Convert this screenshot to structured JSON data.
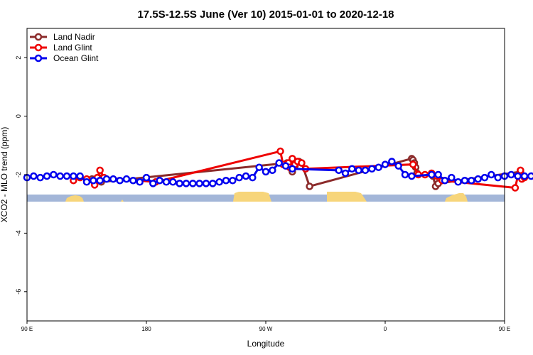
{
  "chart_data": {
    "type": "line",
    "title": "17.5S-12.5S June (Ver 10)   2015-01-01 to 2020-12-18",
    "xlabel": "Longitude",
    "ylabel": "XCO2 - MLO trend (ppm)",
    "xlim": [
      90,
      450
    ],
    "ylim": [
      -7,
      3
    ],
    "x_ticks": [
      {
        "value": 90,
        "label": "90 E"
      },
      {
        "value": 180,
        "label": "180"
      },
      {
        "value": 270,
        "label": "90 W"
      },
      {
        "value": 360,
        "label": "0"
      },
      {
        "value": 450,
        "label": "90 E"
      },
      {
        "value": 540,
        "label": "180"
      }
    ],
    "y_ticks": [
      {
        "value": 2,
        "label": "2"
      },
      {
        "value": 0,
        "label": "0"
      },
      {
        "value": -2,
        "label": "-2"
      },
      {
        "value": -4,
        "label": "-4"
      },
      {
        "value": -6,
        "label": "-6"
      }
    ],
    "legend_position": "top-left",
    "colors": {
      "land_nadir": "#8b2a2a",
      "land_glint": "#ee0000",
      "ocean_glint": "#0000ee",
      "ocean_strip": "#a3b6d8",
      "land_strip": "#f7d57a"
    },
    "series": [
      {
        "name": "Land Nadir",
        "color": "#8b2a2a",
        "x": [
          139,
          142,
          144,
          146,
          286,
          288,
          290,
          292,
          295,
          297,
          303,
          380,
          381,
          382,
          383,
          384,
          396,
          398,
          400,
          462,
          464
        ],
        "y": [
          -2.15,
          -2.2,
          -2.1,
          -2.25,
          -1.6,
          -1.75,
          -1.9,
          -1.7,
          -1.55,
          -1.6,
          -2.4,
          -1.45,
          -1.5,
          -1.6,
          -1.75,
          -1.95,
          -2.05,
          -2.4,
          -2.3,
          -1.9,
          -2.1
        ]
      },
      {
        "name": "Land Glint",
        "color": "#ee0000",
        "x": [
          125,
          130,
          135,
          141,
          143,
          145,
          148,
          187,
          281,
          283,
          287,
          288,
          290,
          292,
          294,
          297,
          300,
          381,
          385,
          390,
          395,
          399,
          403,
          458,
          460,
          462,
          463,
          465
        ],
        "y": [
          -2.2,
          -2.1,
          -2.15,
          -2.35,
          -2.1,
          -1.85,
          -2.1,
          -2.25,
          -1.2,
          -1.65,
          -1.6,
          -1.75,
          -1.45,
          -1.65,
          -1.55,
          -1.6,
          -1.8,
          -1.65,
          -2.0,
          -2.0,
          -1.95,
          -2.05,
          -2.2,
          -2.45,
          -2.05,
          -1.85,
          -2.15,
          -2.1
        ]
      },
      {
        "name": "Ocean Glint",
        "color": "#0000ee",
        "x": [
          90,
          95,
          100,
          105,
          110,
          115,
          120,
          125,
          130,
          135,
          140,
          145,
          150,
          155,
          160,
          165,
          170,
          175,
          180,
          185,
          190,
          195,
          200,
          205,
          210,
          215,
          220,
          225,
          230,
          235,
          240,
          245,
          250,
          255,
          260,
          265,
          270,
          275,
          280,
          285,
          290,
          325,
          330,
          335,
          340,
          345,
          350,
          355,
          360,
          365,
          370,
          375,
          380,
          395,
          400,
          405,
          410,
          415,
          420,
          425,
          430,
          435,
          440,
          445,
          450,
          455,
          460,
          465,
          470,
          475,
          480,
          485,
          490
        ],
        "y": [
          -2.1,
          -2.05,
          -2.1,
          -2.05,
          -2.0,
          -2.05,
          -2.05,
          -2.05,
          -2.05,
          -2.25,
          -2.2,
          -2.2,
          -2.15,
          -2.15,
          -2.2,
          -2.15,
          -2.2,
          -2.25,
          -2.1,
          -2.3,
          -2.2,
          -2.25,
          -2.25,
          -2.3,
          -2.3,
          -2.3,
          -2.3,
          -2.3,
          -2.3,
          -2.25,
          -2.2,
          -2.2,
          -2.1,
          -2.05,
          -2.1,
          -1.75,
          -1.9,
          -1.85,
          -1.6,
          -1.7,
          -1.8,
          -1.85,
          -1.95,
          -1.8,
          -1.85,
          -1.85,
          -1.8,
          -1.75,
          -1.65,
          -1.55,
          -1.7,
          -2.0,
          -2.05,
          -2.0,
          -2.0,
          -2.2,
          -2.1,
          -2.25,
          -2.2,
          -2.2,
          -2.15,
          -2.1,
          -2.0,
          -2.1,
          -2.05,
          -2.0,
          -2.05,
          -2.05,
          -2.05,
          -2.15,
          -2.25,
          -2.2,
          -2.2
        ]
      }
    ]
  }
}
